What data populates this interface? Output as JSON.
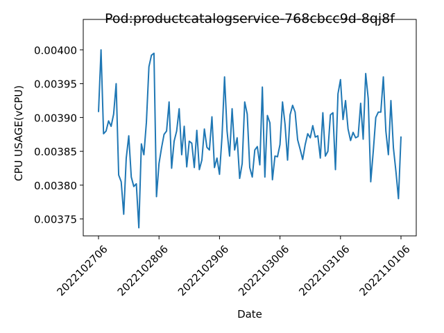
{
  "chart_data": {
    "type": "line",
    "title": "Pod:productcatalogservice-768cbcc9d-8qj8f",
    "xlabel": "Date",
    "ylabel": "CPU USAGE(vCPU)",
    "x_tick_labels": [
      "2022102706",
      "2022102806",
      "2022102906",
      "2022103006",
      "2022103106",
      "2022110106"
    ],
    "y_ticks": [
      0.00375,
      0.0038,
      0.00385,
      0.0039,
      0.00395,
      0.004
    ],
    "y_tick_labels": [
      "0.00375",
      "0.00380",
      "0.00385",
      "0.00390",
      "0.00395",
      "0.00400"
    ],
    "ylim": [
      0.003725,
      0.004045
    ],
    "grid": false,
    "line_color": "#1f77b4",
    "series": [
      {
        "values": [
          0.003908,
          0.004,
          0.003876,
          0.00388,
          0.003895,
          0.003887,
          0.003905,
          0.00395,
          0.003815,
          0.003805,
          0.003757,
          0.00384,
          0.003873,
          0.003812,
          0.003798,
          0.003802,
          0.003737,
          0.003861,
          0.003845,
          0.003893,
          0.003975,
          0.003992,
          0.003995,
          0.003783,
          0.003832,
          0.003855,
          0.003875,
          0.00388,
          0.003923,
          0.003825,
          0.003865,
          0.00388,
          0.003913,
          0.003845,
          0.003887,
          0.003827,
          0.003865,
          0.003862,
          0.003826,
          0.003881,
          0.003823,
          0.003837,
          0.003883,
          0.003856,
          0.003852,
          0.003901,
          0.003826,
          0.00384,
          0.003816,
          0.003872,
          0.00396,
          0.00388,
          0.003843,
          0.003913,
          0.003852,
          0.00387,
          0.00381,
          0.003832,
          0.003923,
          0.003905,
          0.003826,
          0.003812,
          0.003852,
          0.003857,
          0.00383,
          0.003945,
          0.003812,
          0.003903,
          0.003892,
          0.003808,
          0.003843,
          0.003842,
          0.00386,
          0.003923,
          0.00389,
          0.003837,
          0.003904,
          0.003918,
          0.003908,
          0.003867,
          0.003853,
          0.003838,
          0.00386,
          0.003876,
          0.00387,
          0.003888,
          0.003871,
          0.003873,
          0.00384,
          0.003907,
          0.003843,
          0.00385,
          0.003904,
          0.003907,
          0.003823,
          0.003935,
          0.003956,
          0.003897,
          0.003925,
          0.003883,
          0.003866,
          0.003878,
          0.00387,
          0.003872,
          0.003921,
          0.003868,
          0.003965,
          0.003928,
          0.003805,
          0.00385,
          0.0039,
          0.003908,
          0.003908,
          0.00396,
          0.00388,
          0.003845,
          0.003925,
          0.003855,
          0.00382,
          0.00378,
          0.003872
        ]
      }
    ]
  }
}
